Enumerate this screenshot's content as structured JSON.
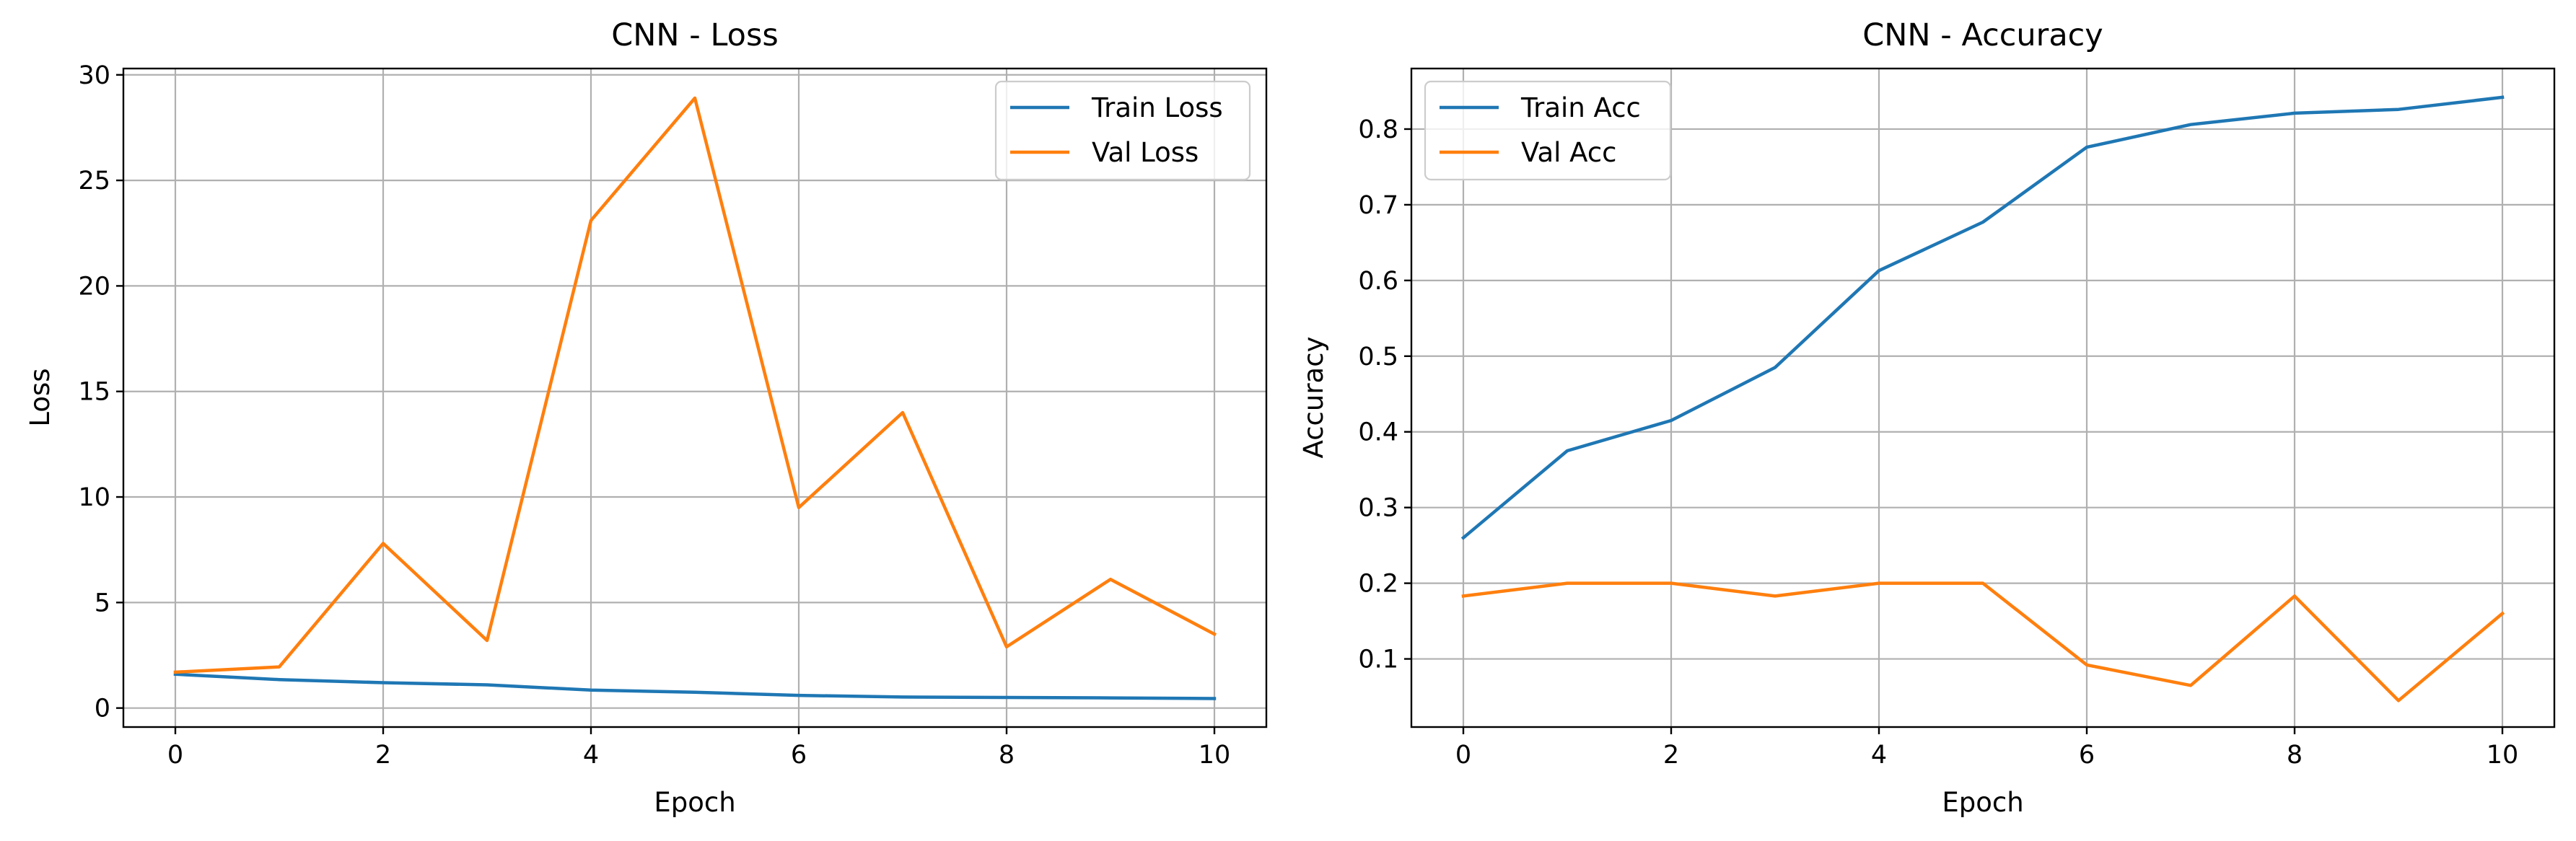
{
  "chart_data": [
    {
      "type": "line",
      "title": "CNN - Loss",
      "xlabel": "Epoch",
      "ylabel": "Loss",
      "xlim": [
        -0.5,
        10.5
      ],
      "ylim": [
        -0.9,
        30.3
      ],
      "xticks": [
        0,
        2,
        4,
        6,
        8,
        10
      ],
      "yticks": [
        0,
        5,
        10,
        15,
        20,
        25,
        30
      ],
      "grid": true,
      "legend_position": "top-right",
      "x": [
        0,
        1,
        2,
        3,
        4,
        5,
        6,
        7,
        8,
        9,
        10
      ],
      "series": [
        {
          "name": "Train Loss",
          "color": "#1f77b4",
          "values": [
            1.6,
            1.35,
            1.2,
            1.1,
            0.85,
            0.75,
            0.6,
            0.52,
            0.5,
            0.48,
            0.45
          ]
        },
        {
          "name": "Val Loss",
          "color": "#ff7f0e",
          "values": [
            1.7,
            1.95,
            7.8,
            3.2,
            23.1,
            28.9,
            9.5,
            14.0,
            2.9,
            6.1,
            3.5
          ]
        }
      ]
    },
    {
      "type": "line",
      "title": "CNN - Accuracy",
      "xlabel": "Epoch",
      "ylabel": "Accuracy",
      "xlim": [
        -0.5,
        10.5
      ],
      "ylim": [
        0.01,
        0.88
      ],
      "xticks": [
        0,
        2,
        4,
        6,
        8,
        10
      ],
      "yticks": [
        0.1,
        0.2,
        0.3,
        0.4,
        0.5,
        0.6,
        0.7,
        0.8
      ],
      "grid": true,
      "legend_position": "top-left",
      "x": [
        0,
        1,
        2,
        3,
        4,
        5,
        6,
        7,
        8,
        9,
        10
      ],
      "series": [
        {
          "name": "Train Acc",
          "color": "#1f77b4",
          "values": [
            0.26,
            0.375,
            0.415,
            0.485,
            0.613,
            0.677,
            0.776,
            0.806,
            0.821,
            0.826,
            0.842
          ]
        },
        {
          "name": "Val Acc",
          "color": "#ff7f0e",
          "values": [
            0.183,
            0.2,
            0.2,
            0.183,
            0.2,
            0.2,
            0.092,
            0.065,
            0.183,
            0.045,
            0.16
          ]
        }
      ]
    }
  ]
}
